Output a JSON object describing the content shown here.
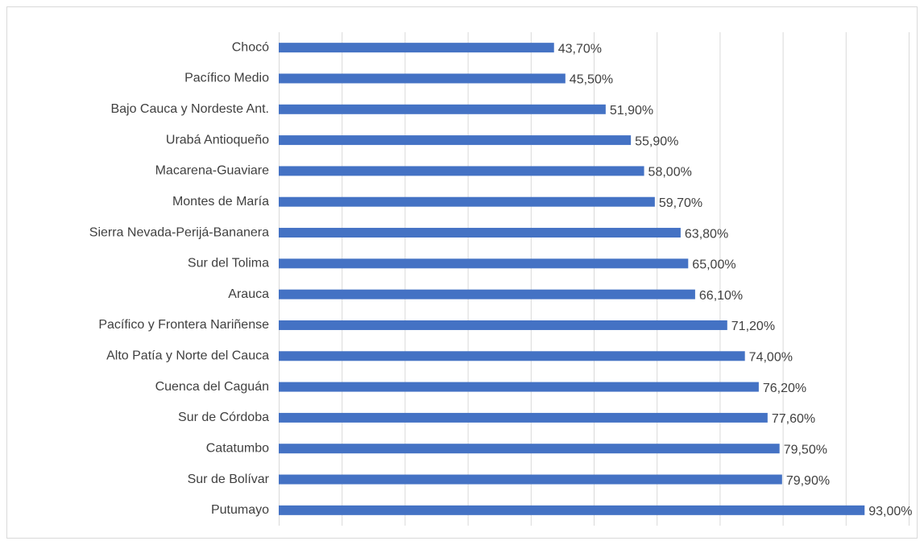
{
  "chart_data": {
    "type": "bar",
    "orientation": "horizontal",
    "categories": [
      "Chocó",
      "Pacífico Medio",
      "Bajo Cauca y Nordeste Ant.",
      "Urabá Antioqueño",
      "Macarena-Guaviare",
      "Montes de María",
      "Sierra Nevada-Perijá-Bananera",
      "Sur del Tolima",
      "Arauca",
      "Pacífico y Frontera Nariñense",
      "Alto Patía y Norte del Cauca",
      "Cuenca del Caguán",
      "Sur de Córdoba",
      "Catatumbo",
      "Sur de Bolívar",
      "Putumayo"
    ],
    "values": [
      43.7,
      45.5,
      51.9,
      55.9,
      58.0,
      59.7,
      63.8,
      65.0,
      66.1,
      71.2,
      74.0,
      76.2,
      77.6,
      79.5,
      79.9,
      93.0
    ],
    "value_labels": [
      "43,70%",
      "45,50%",
      "51,90%",
      "55,90%",
      "58,00%",
      "59,70%",
      "63,80%",
      "65,00%",
      "66,10%",
      "71,20%",
      "74,00%",
      "76,20%",
      "77,60%",
      "79,50%",
      "79,90%",
      "93,00%"
    ],
    "color": "#4472c4",
    "xlim": [
      0,
      100
    ],
    "xticks": [
      0,
      10,
      20,
      30,
      40,
      50,
      60,
      70,
      80,
      90,
      100
    ],
    "grid": true
  }
}
